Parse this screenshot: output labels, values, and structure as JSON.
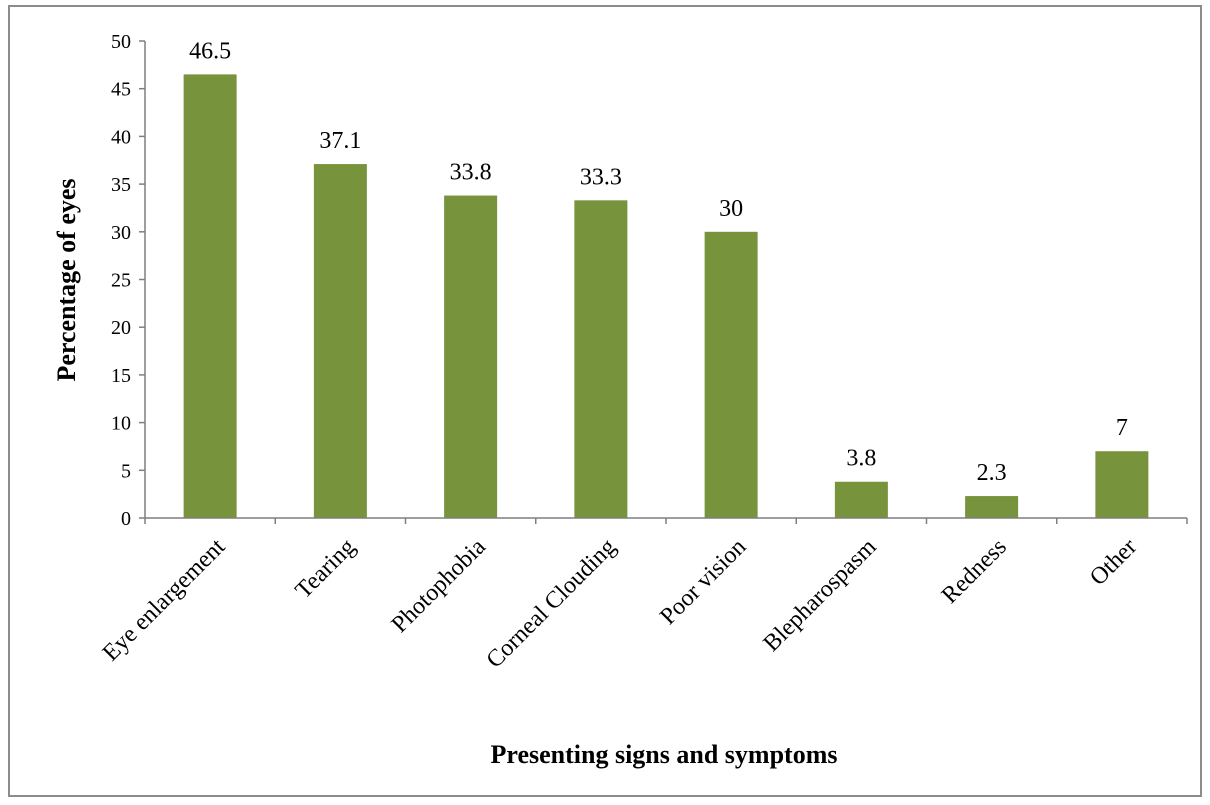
{
  "chart_data": {
    "type": "bar",
    "title": "",
    "xlabel": "Presenting signs and symptoms",
    "ylabel": "Percentage of eyes",
    "ylim": [
      0,
      50
    ],
    "y_ticks": [
      0,
      5,
      10,
      15,
      20,
      25,
      30,
      35,
      40,
      45,
      50
    ],
    "grid": false,
    "legend": "none",
    "categories": [
      "Eye enlargement",
      "Tearing",
      "Photophobia",
      "Corneal Clouding",
      "Poor vision",
      "Blepharospasm",
      "Redness",
      "Other"
    ],
    "values": [
      46.5,
      37.1,
      33.8,
      33.3,
      30,
      3.8,
      2.3,
      7
    ],
    "value_labels": [
      "46.5",
      "37.1",
      "33.8",
      "33.3",
      "30",
      "3.8",
      "2.3",
      "7"
    ],
    "bar_color": "#77933c",
    "axis_color": "#7f7f7f"
  }
}
